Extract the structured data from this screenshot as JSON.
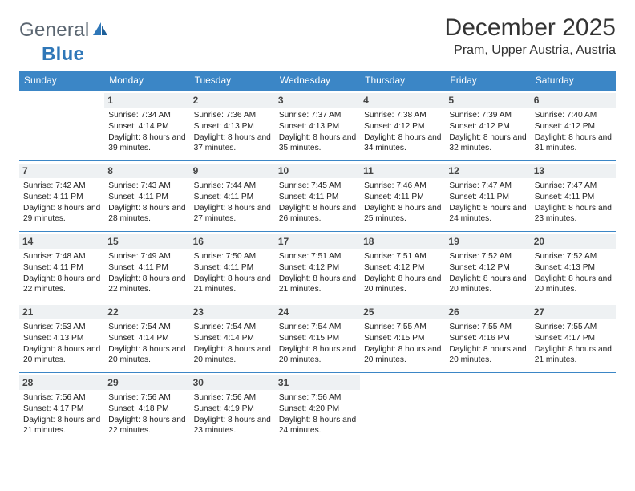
{
  "brand": {
    "word1": "General",
    "word2": "Blue"
  },
  "header": {
    "title": "December 2025",
    "location": "Pram, Upper Austria, Austria"
  },
  "colors": {
    "header_bg": "#3b86c6",
    "header_text": "#ffffff",
    "daynum_bg": "#eef1f3",
    "rule": "#3b86c6",
    "logo_gray": "#5a6570",
    "logo_blue": "#2f77b8"
  },
  "typography": {
    "title_pt": 30,
    "location_pt": 16,
    "dayhead_pt": 12,
    "info_pt": 10.2
  },
  "day_names": [
    "Sunday",
    "Monday",
    "Tuesday",
    "Wednesday",
    "Thursday",
    "Friday",
    "Saturday"
  ],
  "weeks": [
    [
      {
        "n": "",
        "sunrise": "",
        "sunset": "",
        "daylight": ""
      },
      {
        "n": "1",
        "sunrise": "Sunrise: 7:34 AM",
        "sunset": "Sunset: 4:14 PM",
        "daylight": "Daylight: 8 hours and 39 minutes."
      },
      {
        "n": "2",
        "sunrise": "Sunrise: 7:36 AM",
        "sunset": "Sunset: 4:13 PM",
        "daylight": "Daylight: 8 hours and 37 minutes."
      },
      {
        "n": "3",
        "sunrise": "Sunrise: 7:37 AM",
        "sunset": "Sunset: 4:13 PM",
        "daylight": "Daylight: 8 hours and 35 minutes."
      },
      {
        "n": "4",
        "sunrise": "Sunrise: 7:38 AM",
        "sunset": "Sunset: 4:12 PM",
        "daylight": "Daylight: 8 hours and 34 minutes."
      },
      {
        "n": "5",
        "sunrise": "Sunrise: 7:39 AM",
        "sunset": "Sunset: 4:12 PM",
        "daylight": "Daylight: 8 hours and 32 minutes."
      },
      {
        "n": "6",
        "sunrise": "Sunrise: 7:40 AM",
        "sunset": "Sunset: 4:12 PM",
        "daylight": "Daylight: 8 hours and 31 minutes."
      }
    ],
    [
      {
        "n": "7",
        "sunrise": "Sunrise: 7:42 AM",
        "sunset": "Sunset: 4:11 PM",
        "daylight": "Daylight: 8 hours and 29 minutes."
      },
      {
        "n": "8",
        "sunrise": "Sunrise: 7:43 AM",
        "sunset": "Sunset: 4:11 PM",
        "daylight": "Daylight: 8 hours and 28 minutes."
      },
      {
        "n": "9",
        "sunrise": "Sunrise: 7:44 AM",
        "sunset": "Sunset: 4:11 PM",
        "daylight": "Daylight: 8 hours and 27 minutes."
      },
      {
        "n": "10",
        "sunrise": "Sunrise: 7:45 AM",
        "sunset": "Sunset: 4:11 PM",
        "daylight": "Daylight: 8 hours and 26 minutes."
      },
      {
        "n": "11",
        "sunrise": "Sunrise: 7:46 AM",
        "sunset": "Sunset: 4:11 PM",
        "daylight": "Daylight: 8 hours and 25 minutes."
      },
      {
        "n": "12",
        "sunrise": "Sunrise: 7:47 AM",
        "sunset": "Sunset: 4:11 PM",
        "daylight": "Daylight: 8 hours and 24 minutes."
      },
      {
        "n": "13",
        "sunrise": "Sunrise: 7:47 AM",
        "sunset": "Sunset: 4:11 PM",
        "daylight": "Daylight: 8 hours and 23 minutes."
      }
    ],
    [
      {
        "n": "14",
        "sunrise": "Sunrise: 7:48 AM",
        "sunset": "Sunset: 4:11 PM",
        "daylight": "Daylight: 8 hours and 22 minutes."
      },
      {
        "n": "15",
        "sunrise": "Sunrise: 7:49 AM",
        "sunset": "Sunset: 4:11 PM",
        "daylight": "Daylight: 8 hours and 22 minutes."
      },
      {
        "n": "16",
        "sunrise": "Sunrise: 7:50 AM",
        "sunset": "Sunset: 4:11 PM",
        "daylight": "Daylight: 8 hours and 21 minutes."
      },
      {
        "n": "17",
        "sunrise": "Sunrise: 7:51 AM",
        "sunset": "Sunset: 4:12 PM",
        "daylight": "Daylight: 8 hours and 21 minutes."
      },
      {
        "n": "18",
        "sunrise": "Sunrise: 7:51 AM",
        "sunset": "Sunset: 4:12 PM",
        "daylight": "Daylight: 8 hours and 20 minutes."
      },
      {
        "n": "19",
        "sunrise": "Sunrise: 7:52 AM",
        "sunset": "Sunset: 4:12 PM",
        "daylight": "Daylight: 8 hours and 20 minutes."
      },
      {
        "n": "20",
        "sunrise": "Sunrise: 7:52 AM",
        "sunset": "Sunset: 4:13 PM",
        "daylight": "Daylight: 8 hours and 20 minutes."
      }
    ],
    [
      {
        "n": "21",
        "sunrise": "Sunrise: 7:53 AM",
        "sunset": "Sunset: 4:13 PM",
        "daylight": "Daylight: 8 hours and 20 minutes."
      },
      {
        "n": "22",
        "sunrise": "Sunrise: 7:54 AM",
        "sunset": "Sunset: 4:14 PM",
        "daylight": "Daylight: 8 hours and 20 minutes."
      },
      {
        "n": "23",
        "sunrise": "Sunrise: 7:54 AM",
        "sunset": "Sunset: 4:14 PM",
        "daylight": "Daylight: 8 hours and 20 minutes."
      },
      {
        "n": "24",
        "sunrise": "Sunrise: 7:54 AM",
        "sunset": "Sunset: 4:15 PM",
        "daylight": "Daylight: 8 hours and 20 minutes."
      },
      {
        "n": "25",
        "sunrise": "Sunrise: 7:55 AM",
        "sunset": "Sunset: 4:15 PM",
        "daylight": "Daylight: 8 hours and 20 minutes."
      },
      {
        "n": "26",
        "sunrise": "Sunrise: 7:55 AM",
        "sunset": "Sunset: 4:16 PM",
        "daylight": "Daylight: 8 hours and 20 minutes."
      },
      {
        "n": "27",
        "sunrise": "Sunrise: 7:55 AM",
        "sunset": "Sunset: 4:17 PM",
        "daylight": "Daylight: 8 hours and 21 minutes."
      }
    ],
    [
      {
        "n": "28",
        "sunrise": "Sunrise: 7:56 AM",
        "sunset": "Sunset: 4:17 PM",
        "daylight": "Daylight: 8 hours and 21 minutes."
      },
      {
        "n": "29",
        "sunrise": "Sunrise: 7:56 AM",
        "sunset": "Sunset: 4:18 PM",
        "daylight": "Daylight: 8 hours and 22 minutes."
      },
      {
        "n": "30",
        "sunrise": "Sunrise: 7:56 AM",
        "sunset": "Sunset: 4:19 PM",
        "daylight": "Daylight: 8 hours and 23 minutes."
      },
      {
        "n": "31",
        "sunrise": "Sunrise: 7:56 AM",
        "sunset": "Sunset: 4:20 PM",
        "daylight": "Daylight: 8 hours and 24 minutes."
      },
      {
        "n": "",
        "sunrise": "",
        "sunset": "",
        "daylight": ""
      },
      {
        "n": "",
        "sunrise": "",
        "sunset": "",
        "daylight": ""
      },
      {
        "n": "",
        "sunrise": "",
        "sunset": "",
        "daylight": ""
      }
    ]
  ]
}
